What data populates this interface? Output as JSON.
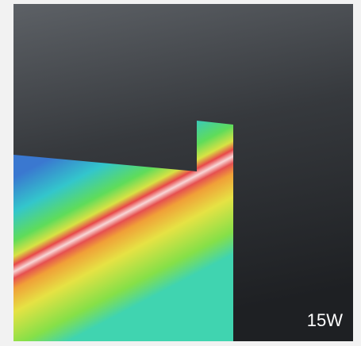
{
  "label": "15W"
}
